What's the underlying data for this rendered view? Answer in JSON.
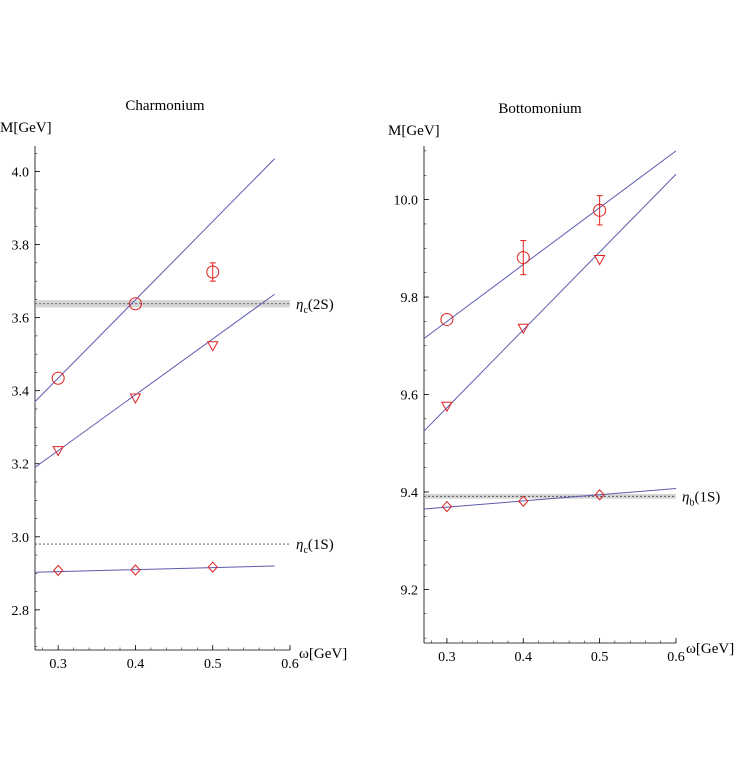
{
  "colors": {
    "fit_line": "#5b5bb0",
    "marker": "#e02020",
    "band": "#b4b4b4",
    "axis": "#000000"
  },
  "chart_data": [
    {
      "type": "scatter",
      "title": "Charmonium",
      "xlabel": "ω[GeV]",
      "ylabel": "M[GeV]",
      "xlim": [
        0.27,
        0.6
      ],
      "ylim": [
        2.69,
        4.07
      ],
      "xticks": [
        "0.3",
        "0.4",
        "0.5",
        "0.6"
      ],
      "yticks": [
        "2.8",
        "3.0",
        "3.2",
        "3.4",
        "3.6",
        "3.8",
        "4.0"
      ],
      "series": [
        {
          "marker": "circle",
          "x": [
            0.3,
            0.4,
            0.5
          ],
          "y": [
            3.434,
            3.638,
            3.725
          ],
          "yerr": [
            0,
            0,
            0.025
          ]
        },
        {
          "marker": "triangle-down",
          "x": [
            0.3,
            0.4,
            0.5
          ],
          "y": [
            3.236,
            3.38,
            3.523
          ],
          "yerr": [
            0,
            0,
            0
          ]
        },
        {
          "marker": "diamond",
          "x": [
            0.3,
            0.4,
            0.5
          ],
          "y": [
            2.908,
            2.909,
            2.917
          ],
          "yerr": [
            0,
            0,
            0
          ]
        }
      ],
      "fit_lines": [
        {
          "x": [
            0.27,
            0.58
          ],
          "y": [
            3.37,
            4.035
          ]
        },
        {
          "x": [
            0.27,
            0.58
          ],
          "y": [
            3.19,
            3.664
          ]
        },
        {
          "x": [
            0.27,
            0.58
          ],
          "y": [
            2.903,
            2.92
          ]
        }
      ],
      "reference_lines": [
        {
          "y": 3.638,
          "band": 0.01,
          "label_main": "η",
          "label_sub": "c",
          "label_tail": "(2S)"
        },
        {
          "y": 2.98,
          "band": 0,
          "label_main": "η",
          "label_sub": "c",
          "label_tail": "(1S)"
        }
      ]
    },
    {
      "type": "scatter",
      "title": "Bottomonium",
      "xlabel": "ω[GeV]",
      "ylabel": "M[GeV]",
      "xlim": [
        0.27,
        0.6
      ],
      "ylim": [
        9.09,
        10.11
      ],
      "xticks": [
        "0.3",
        "0.4",
        "0.5",
        "0.6"
      ],
      "yticks": [
        "9.2",
        "9.4",
        "9.6",
        "9.8",
        "10.0"
      ],
      "series": [
        {
          "marker": "circle",
          "x": [
            0.3,
            0.4,
            0.5
          ],
          "y": [
            9.754,
            9.881,
            9.978
          ],
          "yerr": [
            0,
            0.035,
            0.03
          ]
        },
        {
          "marker": "triangle-down",
          "x": [
            0.3,
            0.4,
            0.5
          ],
          "y": [
            9.576,
            9.736,
            9.877
          ],
          "yerr": [
            0,
            0,
            0
          ]
        },
        {
          "marker": "diamond",
          "x": [
            0.3,
            0.4,
            0.5
          ],
          "y": [
            9.37,
            9.381,
            9.394
          ],
          "yerr": [
            0,
            0,
            0
          ]
        }
      ],
      "fit_lines": [
        {
          "x": [
            0.27,
            0.6
          ],
          "y": [
            9.715,
            10.1
          ]
        },
        {
          "x": [
            0.27,
            0.6
          ],
          "y": [
            9.525,
            10.052
          ]
        },
        {
          "x": [
            0.27,
            0.6
          ],
          "y": [
            9.365,
            9.407
          ]
        }
      ],
      "reference_lines": [
        {
          "y": 9.391,
          "band": 0.005,
          "label_main": "η",
          "label_sub": "b",
          "label_tail": "(1S)"
        }
      ]
    }
  ]
}
